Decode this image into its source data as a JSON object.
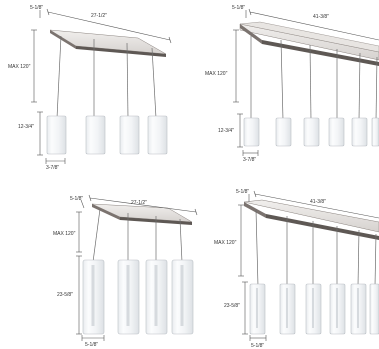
{
  "diagrams": [
    {
      "label_canopy_depth": "5-1/8\"",
      "label_canopy_length": "27-1/2\"",
      "label_max_drop": "MAX 120\"",
      "label_shade_height": "12-3/4\"",
      "label_shade_width": "3-7/8\"",
      "shade_count": 4,
      "shade_style": "short cylinder"
    },
    {
      "label_canopy_depth": "5-1/8\"",
      "label_canopy_length": "41-3/8\"",
      "label_max_drop": "MAX 120\"",
      "label_shade_height": "12-3/4\"",
      "label_shade_width": "3-7/8\"",
      "shade_count": 6,
      "shade_style": "short cylinder"
    },
    {
      "label_canopy_depth": "5-1/8\"",
      "label_canopy_length": "27-1/2\"",
      "label_max_drop": "MAX 120\"",
      "label_shade_height": "23-5/8\"",
      "label_shade_width": "5-1/8\"",
      "shade_count": 4,
      "shade_style": "tall cylinder"
    },
    {
      "label_canopy_depth": "5-1/8\"",
      "label_canopy_length": "41-3/8\"",
      "label_max_drop": "MAX 120\"",
      "label_shade_height": "23-5/8\"",
      "label_shade_width": "5-1/8\"",
      "shade_count": 6,
      "shade_style": "tall cylinder"
    }
  ],
  "colors": {
    "canopy_top": "#e6e3e0",
    "canopy_edge": "#5e5854",
    "cord": "#6d6d6d",
    "glass_outline": "#b9bec4",
    "dimension_line": "#555555",
    "text": "#333333"
  }
}
